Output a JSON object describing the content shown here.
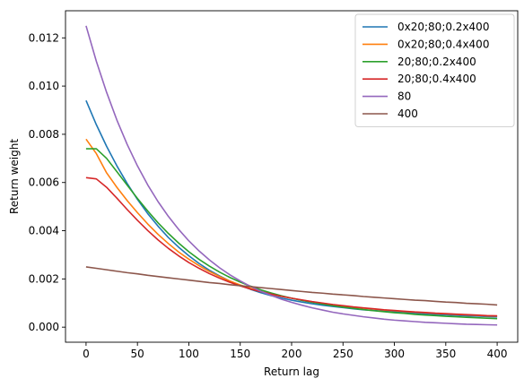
{
  "chart_data": {
    "type": "line",
    "title": "",
    "xlabel": "Return lag",
    "ylabel": "Return weight",
    "xlim": [
      -20,
      420
    ],
    "ylim": [
      -0.000625,
      0.013125
    ],
    "xticks": [
      0,
      50,
      100,
      150,
      200,
      250,
      300,
      350,
      400
    ],
    "xtick_labels": [
      "0",
      "50",
      "100",
      "150",
      "200",
      "250",
      "300",
      "350",
      "400"
    ],
    "yticks": [
      0.0,
      0.002,
      0.004,
      0.006,
      0.008,
      0.01,
      0.012
    ],
    "ytick_labels": [
      "0.000",
      "0.002",
      "0.004",
      "0.006",
      "0.008",
      "0.010",
      "0.012"
    ],
    "grid": false,
    "legend_position": "top-right",
    "x": [
      0,
      10,
      20,
      30,
      40,
      50,
      60,
      70,
      80,
      90,
      100,
      110,
      120,
      130,
      140,
      150,
      160,
      170,
      180,
      190,
      200,
      210,
      220,
      230,
      240,
      250,
      260,
      270,
      280,
      290,
      300,
      310,
      320,
      330,
      340,
      350,
      360,
      370,
      380,
      390,
      400
    ],
    "series": [
      {
        "name": "0x20;80;0.2x400",
        "color": "#1f77b4",
        "values": [
          0.0094,
          0.0084,
          0.0075,
          0.00669,
          0.00596,
          0.0053,
          0.00471,
          0.00419,
          0.00372,
          0.00332,
          0.00296,
          0.00264,
          0.00236,
          0.00212,
          0.00191,
          0.00173,
          0.00157,
          0.00143,
          0.00131,
          0.00121,
          0.00112,
          0.00104,
          0.00097,
          0.00091,
          0.00086,
          0.00081,
          0.00076,
          0.00072,
          0.00069,
          0.00066,
          0.00063,
          0.0006,
          0.00058,
          0.00055,
          0.00053,
          0.00051,
          0.00049,
          0.00047,
          0.00046,
          0.00044,
          0.00042
        ]
      },
      {
        "name": "0x20;80;0.4x400",
        "color": "#ff7f0e",
        "values": [
          0.0078,
          0.0072,
          0.0064,
          0.0058,
          0.00525,
          0.00475,
          0.00428,
          0.00385,
          0.00347,
          0.00312,
          0.00282,
          0.00255,
          0.00231,
          0.0021,
          0.00191,
          0.00175,
          0.00161,
          0.00149,
          0.00138,
          0.00128,
          0.0012,
          0.00112,
          0.00105,
          0.00099,
          0.00093,
          0.00088,
          0.00083,
          0.00079,
          0.00075,
          0.00071,
          0.00068,
          0.00065,
          0.00062,
          0.0006,
          0.00057,
          0.00055,
          0.00053,
          0.00051,
          0.00049,
          0.00047,
          0.00046
        ]
      },
      {
        "name": "20;80;0.2x400",
        "color": "#2ca02c",
        "values": [
          0.0074,
          0.0074,
          0.007,
          0.00645,
          0.00589,
          0.00534,
          0.00482,
          0.00433,
          0.00389,
          0.00349,
          0.00313,
          0.00281,
          0.00253,
          0.00228,
          0.00206,
          0.00187,
          0.0017,
          0.00155,
          0.00142,
          0.0013,
          0.0012,
          0.00111,
          0.00103,
          0.00096,
          0.00089,
          0.00083,
          0.00078,
          0.00073,
          0.00068,
          0.00064,
          0.0006,
          0.00057,
          0.00053,
          0.0005,
          0.00048,
          0.00045,
          0.00043,
          0.00041,
          0.00039,
          0.00037,
          0.00035
        ]
      },
      {
        "name": "20;80;0.4x400",
        "color": "#d62728",
        "values": [
          0.0062,
          0.00615,
          0.0058,
          0.00535,
          0.00488,
          0.00443,
          0.00401,
          0.00362,
          0.00327,
          0.00296,
          0.00268,
          0.00244,
          0.00222,
          0.00203,
          0.00186,
          0.00171,
          0.00158,
          0.00147,
          0.00137,
          0.00128,
          0.0012,
          0.00113,
          0.00106,
          0.001,
          0.00094,
          0.00089,
          0.00084,
          0.0008,
          0.00076,
          0.00072,
          0.00069,
          0.00066,
          0.00063,
          0.00061,
          0.00058,
          0.00056,
          0.00054,
          0.00052,
          0.0005,
          0.00048,
          0.00047
        ]
      },
      {
        "name": "80",
        "color": "#9467bd",
        "values": [
          0.0125,
          0.01103,
          0.00974,
          0.00859,
          0.00758,
          0.00669,
          0.0059,
          0.00521,
          0.0046,
          0.00406,
          0.00358,
          0.00316,
          0.00279,
          0.00246,
          0.00217,
          0.00192,
          0.00169,
          0.00149,
          0.00132,
          0.00116,
          0.00103,
          0.00091,
          0.0008,
          0.00071,
          0.00062,
          0.00055,
          0.00049,
          0.00043,
          0.00038,
          0.00033,
          0.00029,
          0.00026,
          0.00023,
          0.0002,
          0.00018,
          0.00016,
          0.00014,
          0.00012,
          0.00011,
          0.0001,
          9e-05
        ]
      },
      {
        "name": "400",
        "color": "#8c564b",
        "values": [
          0.0025,
          0.00244,
          0.00238,
          0.00232,
          0.00226,
          0.00221,
          0.00215,
          0.0021,
          0.00205,
          0.002,
          0.00195,
          0.0019,
          0.00185,
          0.00181,
          0.00176,
          0.00172,
          0.00168,
          0.00164,
          0.0016,
          0.00156,
          0.00152,
          0.00148,
          0.00144,
          0.00141,
          0.00137,
          0.00134,
          0.00131,
          0.00127,
          0.00124,
          0.00121,
          0.00118,
          0.00115,
          0.00112,
          0.0011,
          0.00107,
          0.00104,
          0.00102,
          0.00099,
          0.00097,
          0.00095,
          0.00092
        ]
      }
    ]
  }
}
